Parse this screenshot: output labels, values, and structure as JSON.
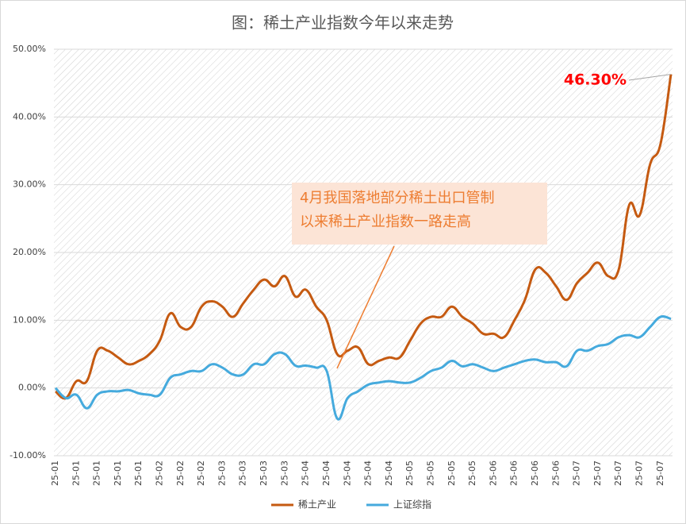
{
  "chart_data": {
    "type": "line",
    "title": "图：稀土产业指数今年以来走势",
    "categories": [
      "25-01",
      null,
      "25-01",
      null,
      "25-01",
      null,
      "25-01",
      null,
      "25-01",
      null,
      "25-02",
      null,
      "25-02",
      null,
      "25-02",
      null,
      "25-03",
      null,
      "25-03",
      null,
      "25-03",
      null,
      "25-03",
      null,
      "25-04",
      null,
      "25-04",
      null,
      "25-04",
      null,
      "25-04",
      null,
      "25-04",
      null,
      "25-05",
      null,
      "25-05",
      null,
      "25-05",
      null,
      "25-05",
      null,
      "25-06",
      null,
      "25-06",
      null,
      "25-06",
      null,
      "25-06",
      null,
      "25-07",
      null,
      "25-07",
      null,
      "25-07",
      null,
      "25-07",
      null,
      "25-07",
      null
    ],
    "series": [
      {
        "name": "稀土产业",
        "color": "#c55a11",
        "values": [
          -0.5,
          -1.5,
          1,
          1,
          5.5,
          5.5,
          4.5,
          3.5,
          4,
          5,
          7,
          11,
          9,
          9,
          12,
          12.8,
          12,
          10.5,
          12.5,
          14.5,
          16,
          15,
          16.5,
          13.5,
          14.5,
          12,
          10,
          5,
          5.5,
          6,
          3.5,
          4,
          4.5,
          4.5,
          7,
          9.5,
          10.5,
          10.5,
          12,
          10.5,
          9.5,
          8,
          8,
          7.5,
          10,
          13,
          17.5,
          17,
          15,
          13,
          15.5,
          17,
          18.5,
          16.5,
          17.5,
          27,
          25.5,
          33,
          36,
          46.3
        ]
      },
      {
        "name": "上证综指",
        "color": "#45aadd",
        "values": [
          0,
          -1.5,
          -1,
          -3,
          -1,
          -0.5,
          -0.5,
          -0.3,
          -0.8,
          -1,
          -1,
          1.5,
          2,
          2.5,
          2.5,
          3.5,
          3,
          2,
          2,
          3.5,
          3.5,
          5,
          5,
          3.3,
          3.3,
          3,
          2.5,
          -4.5,
          -1.5,
          -0.5,
          0.5,
          0.8,
          1,
          0.8,
          0.8,
          1.5,
          2.5,
          3,
          4,
          3.2,
          3.5,
          3,
          2.5,
          3,
          3.5,
          4,
          4.2,
          3.8,
          3.8,
          3.2,
          5.5,
          5.5,
          6.2,
          6.5,
          7.5,
          7.8,
          7.5,
          9,
          10.5,
          10.2
        ]
      }
    ],
    "ylim": [
      -10,
      50
    ],
    "yticks": [
      {
        "value": -10,
        "label": "-10.00%"
      },
      {
        "value": 0,
        "label": "0.00%"
      },
      {
        "value": 10,
        "label": "10.00%"
      },
      {
        "value": 20,
        "label": "20.00%"
      },
      {
        "value": 30,
        "label": "30.00%"
      },
      {
        "value": 40,
        "label": "40.00%"
      },
      {
        "value": 50,
        "label": "50.00%"
      }
    ],
    "grid": true,
    "legend": "bottom",
    "annotations": [
      {
        "text": "46.30%",
        "color": "#ff0000"
      },
      {
        "lines": [
          "4月我国落地部分稀土出口管制",
          "以来稀土产业指数一路走高"
        ],
        "color": "#ed7d31",
        "background": "#fce4d6"
      }
    ]
  }
}
